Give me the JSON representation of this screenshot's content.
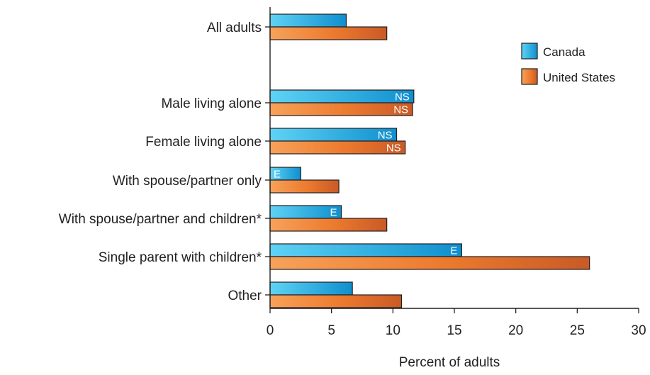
{
  "chart_data": {
    "type": "bar",
    "orientation": "horizontal",
    "categories": [
      "All adults",
      "Male living alone",
      "Female living alone",
      "With spouse/partner only",
      "With spouse/partner and children*",
      "Single parent with children*",
      "Other"
    ],
    "series": [
      {
        "name": "Canada",
        "values": [
          6.2,
          11.7,
          10.3,
          2.5,
          5.8,
          15.6,
          6.7
        ],
        "annotations": [
          "",
          "NS",
          "NS",
          "E",
          "E",
          "E",
          ""
        ]
      },
      {
        "name": "United States",
        "values": [
          9.5,
          11.6,
          11.0,
          5.6,
          9.5,
          26.0,
          10.7
        ],
        "annotations": [
          "",
          "NS",
          "NS",
          "",
          "",
          "",
          ""
        ]
      }
    ],
    "xlabel": "Percent of adults",
    "ylabel": "",
    "xlim": [
      0,
      30
    ],
    "xticks": [
      "0",
      "5",
      "10",
      "15",
      "20",
      "25",
      "30"
    ],
    "legend_position": "top-right",
    "grid": false,
    "colors": {
      "Canada": "#1aa7dc",
      "United States": "#e8702a",
      "axis": "#231f20",
      "bar_outline": "#231f20"
    }
  }
}
